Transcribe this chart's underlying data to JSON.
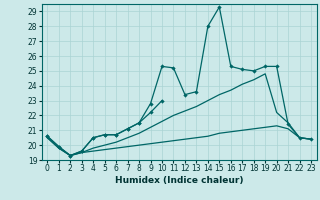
{
  "xlabel": "Humidex (Indice chaleur)",
  "xlim": [
    -0.5,
    23.5
  ],
  "ylim": [
    19,
    29.5
  ],
  "yticks": [
    19,
    20,
    21,
    22,
    23,
    24,
    25,
    26,
    27,
    28,
    29
  ],
  "xticks": [
    0,
    1,
    2,
    3,
    4,
    5,
    6,
    7,
    8,
    9,
    10,
    11,
    12,
    13,
    14,
    15,
    16,
    17,
    18,
    19,
    20,
    21,
    22,
    23
  ],
  "background_color": "#cce9e9",
  "grid_color": "#aad4d4",
  "line_color": "#006666",
  "line1_x": [
    0,
    1,
    2,
    3,
    4,
    5,
    6,
    7,
    8,
    9,
    10,
    11,
    12,
    13,
    14,
    15,
    16,
    17,
    18,
    19,
    20,
    21,
    22,
    23
  ],
  "line1_y": [
    20.6,
    19.9,
    19.3,
    19.6,
    20.5,
    20.7,
    20.7,
    21.1,
    21.5,
    22.8,
    25.3,
    25.2,
    23.4,
    23.6,
    28.0,
    29.3,
    25.3,
    25.1,
    25.0,
    25.3,
    25.3,
    21.4,
    20.5,
    20.4
  ],
  "line2_x": [
    0,
    1,
    2,
    3,
    4,
    5,
    6,
    7,
    8,
    9,
    10
  ],
  "line2_y": [
    20.6,
    19.9,
    19.3,
    19.6,
    20.5,
    20.7,
    20.7,
    21.1,
    21.5,
    22.2,
    23.0
  ],
  "line3_x": [
    0,
    1,
    2,
    3,
    4,
    5,
    6,
    7,
    8,
    9,
    10,
    11,
    12,
    13,
    14,
    15,
    16,
    17,
    18,
    19,
    20,
    21,
    22,
    23
  ],
  "line3_y": [
    20.5,
    19.8,
    19.3,
    19.5,
    19.6,
    19.7,
    19.8,
    19.9,
    20.0,
    20.1,
    20.2,
    20.3,
    20.4,
    20.5,
    20.6,
    20.8,
    20.9,
    21.0,
    21.1,
    21.2,
    21.3,
    21.1,
    20.5,
    20.4
  ],
  "line4_x": [
    0,
    1,
    2,
    3,
    4,
    5,
    6,
    7,
    8,
    9,
    10,
    11,
    12,
    13,
    14,
    15,
    16,
    17,
    18,
    19,
    20,
    21,
    22,
    23
  ],
  "line4_y": [
    20.5,
    19.8,
    19.3,
    19.5,
    19.8,
    20.0,
    20.2,
    20.5,
    20.8,
    21.2,
    21.6,
    22.0,
    22.3,
    22.6,
    23.0,
    23.4,
    23.7,
    24.1,
    24.4,
    24.8,
    22.2,
    21.5,
    20.5,
    20.4
  ]
}
